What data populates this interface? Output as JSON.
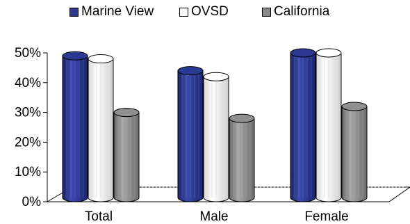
{
  "chart_data": {
    "type": "bar",
    "categories": [
      "Total",
      "Male",
      "Female"
    ],
    "series": [
      {
        "name": "Marine View",
        "values": [
          49,
          44,
          50
        ],
        "color": "#2b3990"
      },
      {
        "name": "OVSD",
        "values": [
          48,
          42,
          50
        ],
        "color": "#f4f4f4"
      },
      {
        "name": "California",
        "values": [
          30,
          28,
          32
        ],
        "color": "#8a8a8a"
      }
    ],
    "ylim": [
      0,
      50
    ],
    "yticks": [
      "0%",
      "10%",
      "20%",
      "30%",
      "40%",
      "50%"
    ],
    "legend_position": "top",
    "grid": false,
    "style": "3d-cylinder"
  }
}
